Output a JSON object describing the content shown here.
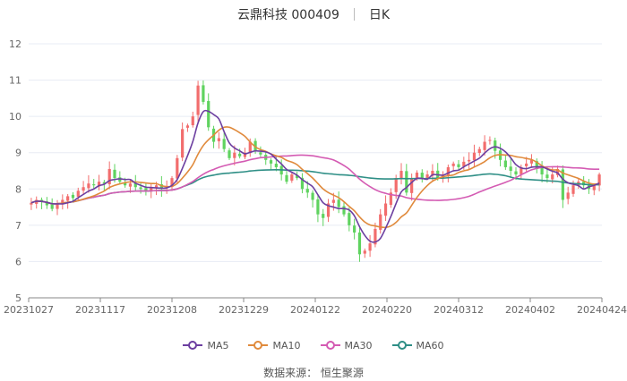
{
  "header": {
    "stock": "云鼎科技 000409",
    "period": "日K"
  },
  "source": {
    "label": "数据来源：",
    "name": "恒生聚源"
  },
  "chart_data": {
    "type": "candlestick",
    "y_ticks": [
      "12",
      "11",
      "10",
      "9",
      "8",
      "7",
      "6",
      "5"
    ],
    "y_range": [
      5,
      12
    ],
    "x_tick_labels": [
      "20231027",
      "20231117",
      "20231208",
      "20231229",
      "20240122",
      "20240220",
      "20240312",
      "20240402",
      "20240424"
    ],
    "colors": {
      "up": "#f26d6d",
      "down": "#5fd35f",
      "ma5": "#6c3fa0",
      "ma10": "#e08a3c",
      "ma30": "#d45bb3",
      "ma60": "#2f8f86"
    },
    "legend": [
      "MA5",
      "MA10",
      "MA30",
      "MA60"
    ],
    "closes": [
      7.62,
      7.7,
      7.65,
      7.55,
      7.45,
      7.6,
      7.7,
      7.8,
      7.75,
      7.95,
      8.05,
      8.15,
      8.1,
      8.2,
      8.15,
      8.55,
      8.3,
      8.2,
      8.1,
      8.15,
      8.05,
      8.0,
      7.95,
      8.05,
      8.1,
      8.0,
      8.05,
      8.3,
      8.85,
      9.65,
      9.75,
      10.0,
      10.85,
      10.4,
      9.7,
      9.3,
      9.4,
      9.1,
      8.85,
      9.0,
      8.9,
      9.0,
      9.3,
      9.05,
      8.95,
      8.8,
      8.7,
      8.6,
      8.4,
      8.2,
      8.4,
      8.3,
      8.0,
      7.9,
      7.7,
      7.3,
      7.2,
      7.6,
      7.7,
      7.5,
      7.3,
      7.0,
      6.8,
      6.2,
      6.3,
      6.5,
      6.9,
      7.3,
      7.6,
      7.9,
      8.3,
      8.5,
      7.9,
      8.3,
      8.45,
      8.3,
      8.4,
      8.5,
      8.3,
      8.4,
      8.6,
      8.7,
      8.6,
      8.75,
      8.8,
      9.0,
      9.1,
      9.3,
      9.35,
      9.05,
      8.8,
      8.6,
      8.5,
      8.4,
      8.6,
      8.7,
      8.8,
      8.55,
      8.4,
      8.3,
      8.4,
      8.55,
      7.7,
      7.9,
      8.1,
      8.2,
      8.1,
      8.0,
      8.1,
      8.4
    ]
  }
}
